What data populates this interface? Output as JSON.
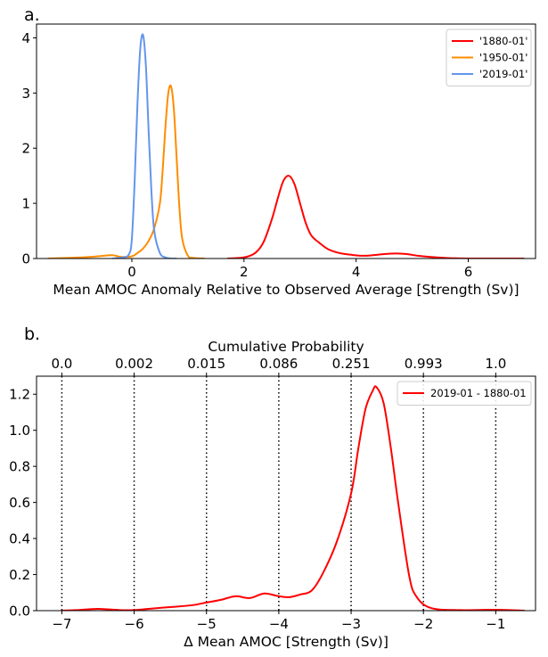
{
  "chart_data": [
    {
      "panel_label": "a.",
      "type": "line",
      "xlabel": "Mean AMOC Anomaly Relative to Observed Average [Strength (Sv)]",
      "ylabel": "",
      "xlim": [
        -1.7,
        7.2
      ],
      "ylim": [
        0,
        4.25
      ],
      "xticks": [
        0,
        2,
        4,
        6
      ],
      "yticks": [
        0,
        1,
        2,
        3,
        4
      ],
      "legend_position": "top-right",
      "grid": false,
      "series": [
        {
          "name": "'1880-01'",
          "color": "#ff0000",
          "x": [
            1.7,
            2.0,
            2.2,
            2.35,
            2.5,
            2.6,
            2.7,
            2.8,
            2.9,
            3.0,
            3.1,
            3.2,
            3.35,
            3.5,
            3.7,
            3.9,
            4.1,
            4.3,
            4.5,
            4.7,
            4.9,
            5.1,
            5.3,
            5.6,
            6.0,
            7.0
          ],
          "y": [
            0.0,
            0.02,
            0.1,
            0.3,
            0.72,
            1.08,
            1.4,
            1.5,
            1.35,
            1.0,
            0.65,
            0.42,
            0.28,
            0.17,
            0.1,
            0.07,
            0.05,
            0.06,
            0.08,
            0.09,
            0.08,
            0.05,
            0.03,
            0.01,
            0.0,
            0.0
          ]
        },
        {
          "name": "'1950-01'",
          "color": "#ff8c00",
          "x": [
            -1.5,
            -0.9,
            -0.6,
            -0.35,
            -0.2,
            0.0,
            0.1,
            0.2,
            0.3,
            0.4,
            0.5,
            0.55,
            0.6,
            0.65,
            0.7,
            0.75,
            0.8,
            0.85,
            0.9,
            1.0,
            1.1,
            1.3
          ],
          "y": [
            0.0,
            0.02,
            0.04,
            0.06,
            0.03,
            0.04,
            0.1,
            0.18,
            0.32,
            0.55,
            1.0,
            1.6,
            2.4,
            3.0,
            3.12,
            2.7,
            1.8,
            0.9,
            0.35,
            0.05,
            0.01,
            0.0
          ]
        },
        {
          "name": "'2019-01'",
          "color": "#6495ed",
          "x": [
            -0.35,
            -0.15,
            -0.05,
            0.0,
            0.05,
            0.1,
            0.15,
            0.2,
            0.25,
            0.3,
            0.35,
            0.4,
            0.5,
            0.6,
            0.7,
            0.8
          ],
          "y": [
            0.0,
            0.02,
            0.08,
            0.35,
            1.4,
            2.8,
            3.8,
            4.05,
            3.5,
            2.3,
            1.2,
            0.5,
            0.1,
            0.02,
            0.0,
            0.0
          ]
        }
      ]
    },
    {
      "panel_label": "b.",
      "type": "line",
      "xlabel": "Δ Mean AMOC [Strength (Sv)]",
      "ylabel": "",
      "top_axis_label": "Cumulative Probability",
      "top_ticks": [
        {
          "x": -7,
          "label": "0.0"
        },
        {
          "x": -6,
          "label": "0.002"
        },
        {
          "x": -5,
          "label": "0.015"
        },
        {
          "x": -4,
          "label": "0.086"
        },
        {
          "x": -3,
          "label": "0.251"
        },
        {
          "x": -2,
          "label": "0.993"
        },
        {
          "x": -1,
          "label": "1.0"
        }
      ],
      "vlines": [
        -7,
        -6,
        -5,
        -4,
        -3,
        -2,
        -1
      ],
      "xlim": [
        -7.35,
        -0.45
      ],
      "ylim": [
        0,
        1.3
      ],
      "xticks": [
        -7,
        -6,
        -5,
        -4,
        -3,
        -2,
        -1
      ],
      "yticks": [
        0.0,
        0.2,
        0.4,
        0.6,
        0.8,
        1.0,
        1.2
      ],
      "legend_position": "top-right",
      "grid": false,
      "series": [
        {
          "name": "2019-01 - 1880-01",
          "color": "#ff0000",
          "x": [
            -7.0,
            -6.8,
            -6.5,
            -6.2,
            -6.0,
            -5.8,
            -5.5,
            -5.2,
            -5.0,
            -4.8,
            -4.6,
            -4.4,
            -4.2,
            -4.0,
            -3.85,
            -3.7,
            -3.55,
            -3.4,
            -3.2,
            -3.0,
            -2.9,
            -2.8,
            -2.7,
            -2.65,
            -2.55,
            -2.45,
            -2.35,
            -2.2,
            -2.1,
            -1.9,
            -1.5,
            -1.0,
            -0.6
          ],
          "y": [
            0.0,
            0.003,
            0.01,
            0.003,
            0.003,
            0.01,
            0.02,
            0.03,
            0.045,
            0.06,
            0.08,
            0.07,
            0.095,
            0.08,
            0.075,
            0.09,
            0.11,
            0.2,
            0.38,
            0.65,
            0.9,
            1.12,
            1.22,
            1.24,
            1.15,
            0.9,
            0.6,
            0.2,
            0.08,
            0.015,
            0.003,
            0.005,
            0.0
          ]
        }
      ]
    }
  ]
}
